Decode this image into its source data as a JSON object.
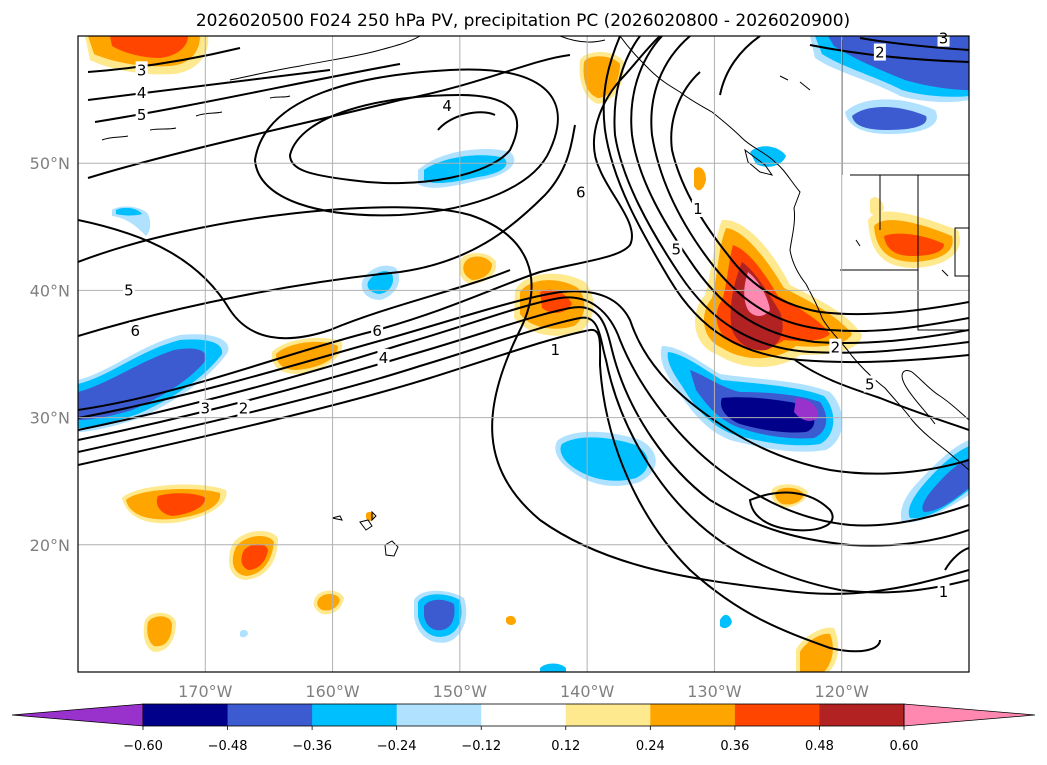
{
  "chart_data": {
    "type": "heatmap",
    "title": "2026020500 F024 250 hPa PV, precipitation PC (2026020800 - 2026020900)",
    "projection": "lat-lon map, North Pacific",
    "lon_range": [
      -180,
      -110
    ],
    "lat_range": [
      10,
      60
    ],
    "x_ticks": [
      -170,
      -160,
      -150,
      -140,
      -130,
      -120
    ],
    "x_tick_labels": [
      "170°W",
      "160°W",
      "150°W",
      "140°W",
      "130°W",
      "120°W"
    ],
    "y_ticks": [
      20,
      30,
      40,
      50
    ],
    "y_tick_labels": [
      "20°N",
      "30°N",
      "40°N",
      "50°N"
    ],
    "grid": true,
    "colorbar": {
      "orientation": "horizontal",
      "extend": "both",
      "levels": [
        -0.6,
        -0.48,
        -0.36,
        -0.24,
        -0.12,
        0.12,
        0.24,
        0.36,
        0.48,
        0.6
      ],
      "tick_labels": [
        "−0.60",
        "−0.48",
        "−0.36",
        "−0.24",
        "−0.12",
        "0.12",
        "0.24",
        "0.36",
        "0.48",
        "0.60"
      ],
      "colors": [
        "#9932cc",
        "#00008b",
        "#3c5bd0",
        "#00bfff",
        "#b0e2ff",
        "#ffffff",
        "#ffe98f",
        "#ffa500",
        "#ff4500",
        "#b22222",
        "#ff88b0"
      ]
    },
    "pv_contour_labels": [
      {
        "text": "3",
        "lon": -175,
        "lat": 57.3
      },
      {
        "text": "4",
        "lon": -175,
        "lat": 55.5
      },
      {
        "text": "5",
        "lon": -175,
        "lat": 53.8
      },
      {
        "text": "5",
        "lon": -176,
        "lat": 40
      },
      {
        "text": "6",
        "lon": -175.5,
        "lat": 36.8
      },
      {
        "text": "4",
        "lon": -151,
        "lat": 54.5
      },
      {
        "text": "6",
        "lon": -140.5,
        "lat": 47.7
      },
      {
        "text": "6",
        "lon": -156.5,
        "lat": 36.8
      },
      {
        "text": "4",
        "lon": -156,
        "lat": 34.7
      },
      {
        "text": "3",
        "lon": -170,
        "lat": 30.7
      },
      {
        "text": "2",
        "lon": -167,
        "lat": 30.7
      },
      {
        "text": "1",
        "lon": -142.5,
        "lat": 35.3
      },
      {
        "text": "5",
        "lon": -133,
        "lat": 43.2
      },
      {
        "text": "1",
        "lon": -131.3,
        "lat": 46.4
      },
      {
        "text": "2",
        "lon": -120.5,
        "lat": 35.5
      },
      {
        "text": "5",
        "lon": -117.8,
        "lat": 32.6
      },
      {
        "text": "2",
        "lon": -117,
        "lat": 58.7
      },
      {
        "text": "3",
        "lon": -112,
        "lat": 59.8
      },
      {
        "text": "1",
        "lon": -112,
        "lat": 16.3
      }
    ]
  }
}
